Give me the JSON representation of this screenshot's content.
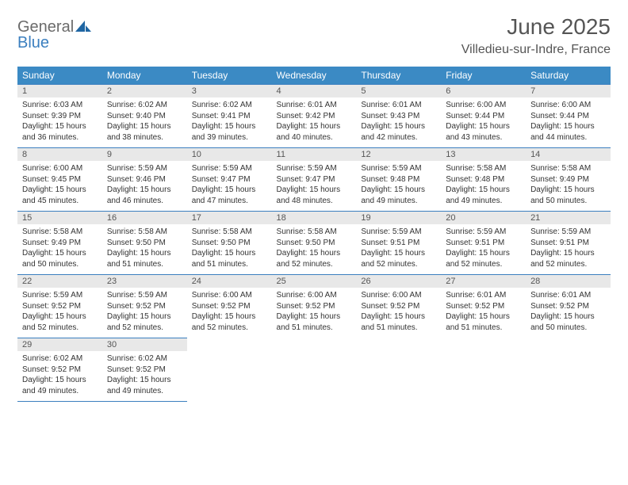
{
  "logo": {
    "line1": "General",
    "line2": "Blue"
  },
  "title": "June 2025",
  "subtitle": "Villedieu-sur-Indre, France",
  "colors": {
    "header_bg": "#3b8ac4",
    "header_fg": "#ffffff",
    "border": "#3b7fbf",
    "daynum_bg": "#e8e8e8",
    "text": "#333333",
    "title": "#555555"
  },
  "weekdays": [
    "Sunday",
    "Monday",
    "Tuesday",
    "Wednesday",
    "Thursday",
    "Friday",
    "Saturday"
  ],
  "days": [
    {
      "n": 1,
      "sr": "6:03 AM",
      "ss": "9:39 PM",
      "dl": "15 hours and 36 minutes."
    },
    {
      "n": 2,
      "sr": "6:02 AM",
      "ss": "9:40 PM",
      "dl": "15 hours and 38 minutes."
    },
    {
      "n": 3,
      "sr": "6:02 AM",
      "ss": "9:41 PM",
      "dl": "15 hours and 39 minutes."
    },
    {
      "n": 4,
      "sr": "6:01 AM",
      "ss": "9:42 PM",
      "dl": "15 hours and 40 minutes."
    },
    {
      "n": 5,
      "sr": "6:01 AM",
      "ss": "9:43 PM",
      "dl": "15 hours and 42 minutes."
    },
    {
      "n": 6,
      "sr": "6:00 AM",
      "ss": "9:44 PM",
      "dl": "15 hours and 43 minutes."
    },
    {
      "n": 7,
      "sr": "6:00 AM",
      "ss": "9:44 PM",
      "dl": "15 hours and 44 minutes."
    },
    {
      "n": 8,
      "sr": "6:00 AM",
      "ss": "9:45 PM",
      "dl": "15 hours and 45 minutes."
    },
    {
      "n": 9,
      "sr": "5:59 AM",
      "ss": "9:46 PM",
      "dl": "15 hours and 46 minutes."
    },
    {
      "n": 10,
      "sr": "5:59 AM",
      "ss": "9:47 PM",
      "dl": "15 hours and 47 minutes."
    },
    {
      "n": 11,
      "sr": "5:59 AM",
      "ss": "9:47 PM",
      "dl": "15 hours and 48 minutes."
    },
    {
      "n": 12,
      "sr": "5:59 AM",
      "ss": "9:48 PM",
      "dl": "15 hours and 49 minutes."
    },
    {
      "n": 13,
      "sr": "5:58 AM",
      "ss": "9:48 PM",
      "dl": "15 hours and 49 minutes."
    },
    {
      "n": 14,
      "sr": "5:58 AM",
      "ss": "9:49 PM",
      "dl": "15 hours and 50 minutes."
    },
    {
      "n": 15,
      "sr": "5:58 AM",
      "ss": "9:49 PM",
      "dl": "15 hours and 50 minutes."
    },
    {
      "n": 16,
      "sr": "5:58 AM",
      "ss": "9:50 PM",
      "dl": "15 hours and 51 minutes."
    },
    {
      "n": 17,
      "sr": "5:58 AM",
      "ss": "9:50 PM",
      "dl": "15 hours and 51 minutes."
    },
    {
      "n": 18,
      "sr": "5:58 AM",
      "ss": "9:50 PM",
      "dl": "15 hours and 52 minutes."
    },
    {
      "n": 19,
      "sr": "5:59 AM",
      "ss": "9:51 PM",
      "dl": "15 hours and 52 minutes."
    },
    {
      "n": 20,
      "sr": "5:59 AM",
      "ss": "9:51 PM",
      "dl": "15 hours and 52 minutes."
    },
    {
      "n": 21,
      "sr": "5:59 AM",
      "ss": "9:51 PM",
      "dl": "15 hours and 52 minutes."
    },
    {
      "n": 22,
      "sr": "5:59 AM",
      "ss": "9:52 PM",
      "dl": "15 hours and 52 minutes."
    },
    {
      "n": 23,
      "sr": "5:59 AM",
      "ss": "9:52 PM",
      "dl": "15 hours and 52 minutes."
    },
    {
      "n": 24,
      "sr": "6:00 AM",
      "ss": "9:52 PM",
      "dl": "15 hours and 52 minutes."
    },
    {
      "n": 25,
      "sr": "6:00 AM",
      "ss": "9:52 PM",
      "dl": "15 hours and 51 minutes."
    },
    {
      "n": 26,
      "sr": "6:00 AM",
      "ss": "9:52 PM",
      "dl": "15 hours and 51 minutes."
    },
    {
      "n": 27,
      "sr": "6:01 AM",
      "ss": "9:52 PM",
      "dl": "15 hours and 51 minutes."
    },
    {
      "n": 28,
      "sr": "6:01 AM",
      "ss": "9:52 PM",
      "dl": "15 hours and 50 minutes."
    },
    {
      "n": 29,
      "sr": "6:02 AM",
      "ss": "9:52 PM",
      "dl": "15 hours and 49 minutes."
    },
    {
      "n": 30,
      "sr": "6:02 AM",
      "ss": "9:52 PM",
      "dl": "15 hours and 49 minutes."
    }
  ],
  "labels": {
    "sunrise": "Sunrise:",
    "sunset": "Sunset:",
    "daylight": "Daylight:"
  }
}
